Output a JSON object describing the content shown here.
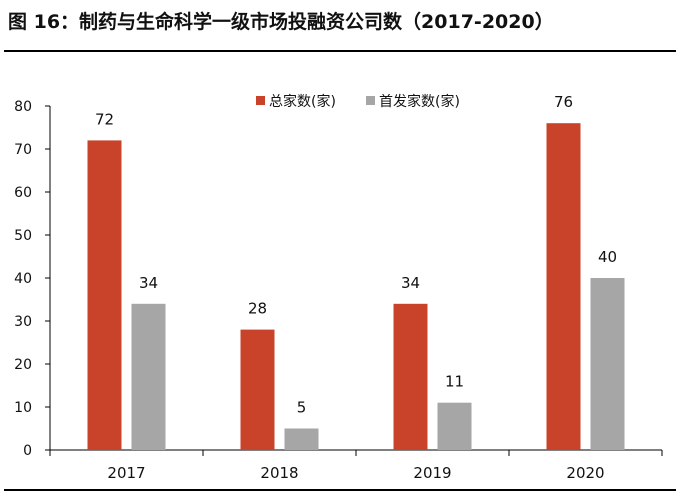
{
  "figure": {
    "title": "图 16：制药与生命科学一级市场投融资公司数（2017-2020）"
  },
  "chart_data": {
    "type": "bar",
    "categories": [
      "2017",
      "2018",
      "2019",
      "2020"
    ],
    "series": [
      {
        "name": "总家数(家)",
        "values": [
          72,
          28,
          34,
          76
        ],
        "color": "#C9432A"
      },
      {
        "name": "首发家数(家)",
        "values": [
          34,
          5,
          11,
          40
        ],
        "color": "#A6A6A6"
      }
    ],
    "ylim": [
      0,
      80
    ],
    "yticks": [
      0,
      10,
      20,
      30,
      40,
      50,
      60,
      70,
      80
    ],
    "data_labels": true,
    "grid": false,
    "legend_position": "top-center",
    "xlabel": "",
    "ylabel": ""
  }
}
